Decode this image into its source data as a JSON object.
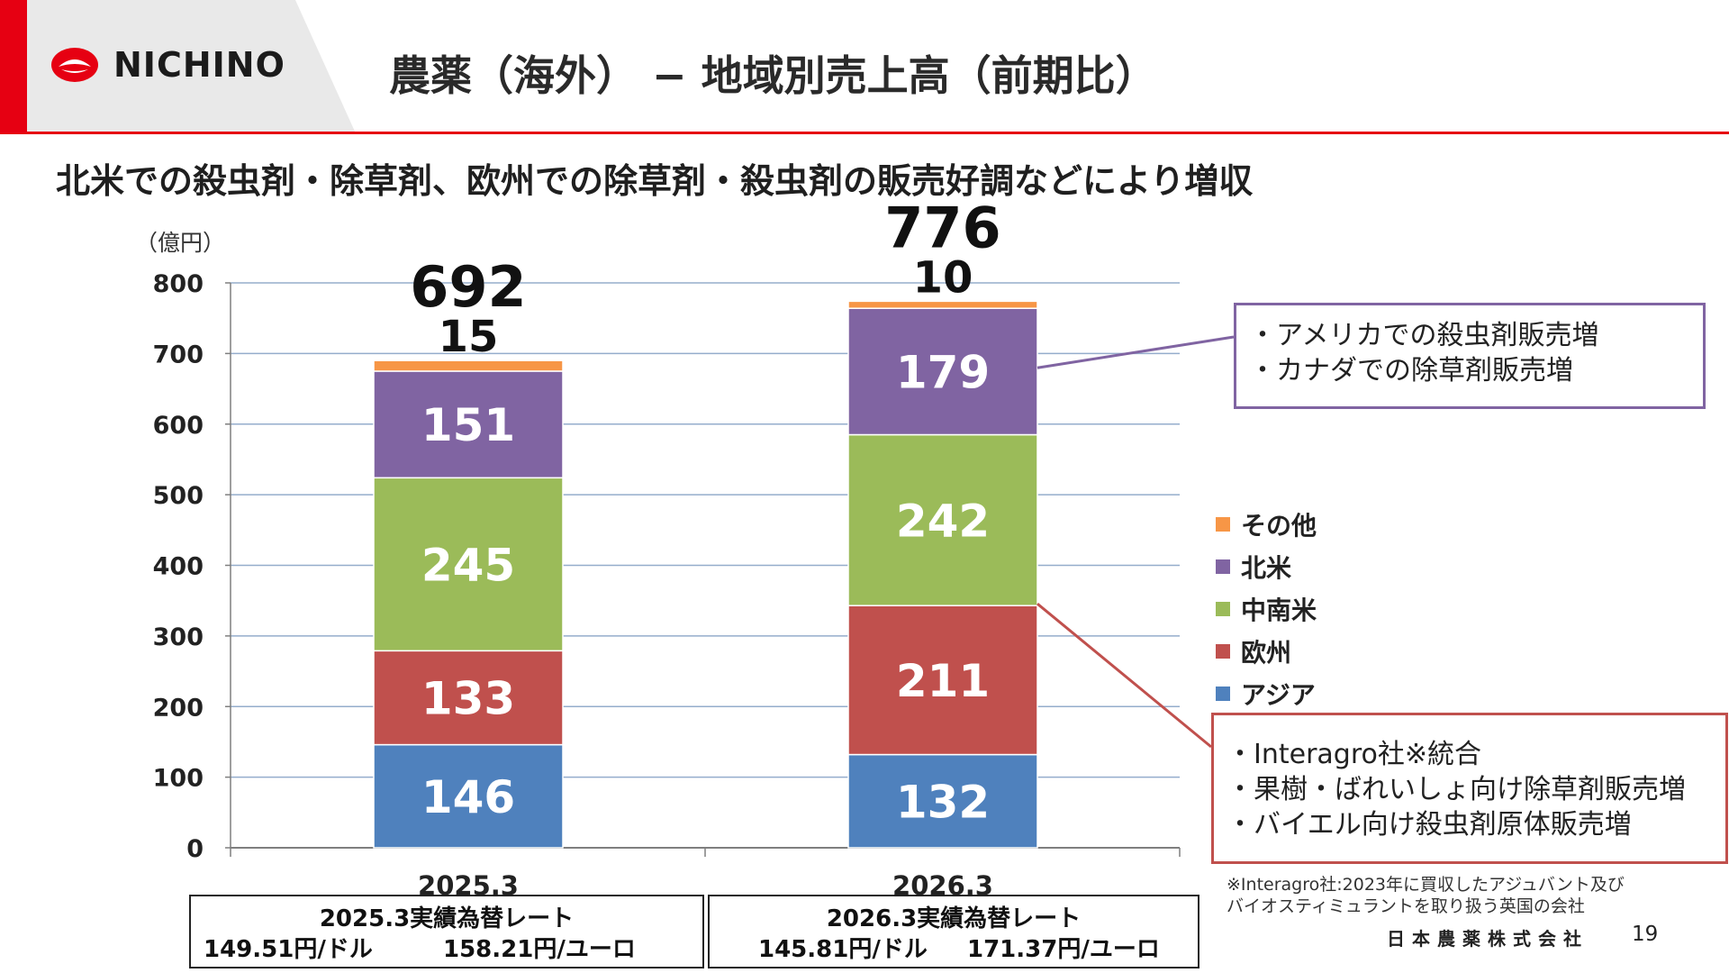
{
  "header": {
    "logo_text": "NICHINO",
    "title": "農薬（海外） − 地域別売上高（前期比）"
  },
  "subtitle": "北米での殺虫剤・除草剤、欧州での除草剤・殺虫剤の販売好調などにより増収",
  "colors": {
    "brand_red": "#e60012",
    "asia": "#4f81bd",
    "europe": "#c0504d",
    "latin_america": "#9bbb59",
    "north_america": "#8064a2",
    "other": "#f79646"
  },
  "chart_data": {
    "type": "bar",
    "stacked": true,
    "unit_label": "（億円）",
    "categories": [
      "2025.3",
      "2026.3"
    ],
    "ylim": [
      0,
      800
    ],
    "yticks": [
      0,
      100,
      200,
      300,
      400,
      500,
      600,
      700,
      800
    ],
    "grid": true,
    "legend_position": "right",
    "series": [
      {
        "name": "アジア",
        "values": [
          146,
          132
        ]
      },
      {
        "name": "欧州",
        "values": [
          133,
          211
        ]
      },
      {
        "name": "中南米",
        "values": [
          245,
          242
        ]
      },
      {
        "name": "北米",
        "values": [
          151,
          179
        ]
      },
      {
        "name": "その他",
        "values": [
          15,
          10
        ]
      }
    ],
    "totals": [
      692,
      776
    ],
    "other_labels": [
      "15",
      "10"
    ]
  },
  "legend": {
    "items": [
      "その他",
      "北米",
      "中南米",
      "欧州",
      "アジア"
    ]
  },
  "callouts": {
    "north_america": [
      "・アメリカでの殺虫剤販売増",
      "・カナダでの除草剤販売増"
    ],
    "europe": [
      "・Interagro社※統合",
      "・果樹・ばれいしょ向け除草剤販売増",
      "・バイエル向け殺虫剤原体販売増"
    ]
  },
  "rates": [
    {
      "title": "2025.3実績為替レート",
      "usd": "149.51円/ドル",
      "eur": "158.21円/ユーロ"
    },
    {
      "title": "2026.3実績為替レート",
      "usd": "145.81円/ドル",
      "eur": "171.37円/ユーロ"
    }
  ],
  "footnote": [
    "※Interagro社:2023年に買収したアジュバント及び",
    "バイオスティミュラントを取り扱う英国の会社"
  ],
  "footer": {
    "company": "日本農薬株式会社",
    "page_number": "19"
  }
}
